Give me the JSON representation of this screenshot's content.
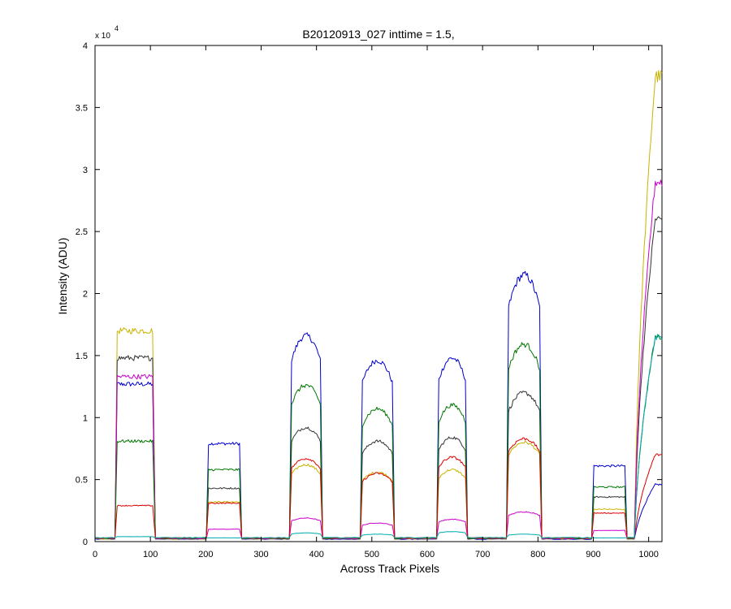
{
  "chart_data": {
    "type": "line",
    "title": "B20120913_027 inttime = 1.5,",
    "xlabel": "Across Track Pixels",
    "ylabel": "Intensity (ADU)",
    "y_exponent_base": "x 10",
    "y_exponent_power": "4",
    "xlim": [
      0,
      1024
    ],
    "ylim": [
      0,
      40000
    ],
    "xticks": [
      0,
      100,
      200,
      300,
      400,
      500,
      600,
      700,
      800,
      900,
      1000
    ],
    "yticks": [
      0,
      5000,
      10000,
      15000,
      20000,
      25000,
      30000,
      35000,
      40000
    ],
    "ytick_labels": [
      "0",
      "0.5",
      "1",
      "1.5",
      "2",
      "2.5",
      "3",
      "3.5",
      "4"
    ],
    "grid": false,
    "legend": "none",
    "background": 200,
    "segments": [
      {
        "x0": 37,
        "x1": 108
      },
      {
        "x0": 202,
        "x1": 264
      },
      {
        "x0": 352,
        "x1": 410
      },
      {
        "x0": 480,
        "x1": 540
      },
      {
        "x0": 618,
        "x1": 672
      },
      {
        "x0": 744,
        "x1": 806
      },
      {
        "x0": 898,
        "x1": 960
      },
      {
        "x0": 975,
        "x1": 1024,
        "edge": true
      }
    ],
    "series": [
      {
        "color": "#0000cc",
        "values": [
          12700,
          7900,
          16600,
          14600,
          14800,
          21500,
          6100,
          4600
        ],
        "shapes": [
          "flat",
          "flat",
          "dome",
          "dome",
          "dome",
          "dome",
          "flat",
          "rise"
        ]
      },
      {
        "color": "#c8b400",
        "values": [
          17000,
          3200,
          6200,
          5600,
          5800,
          8000,
          2600,
          37500
        ],
        "shapes": [
          "flat",
          "flat",
          "dome",
          "dome",
          "dome",
          "dome",
          "flat",
          "rise"
        ]
      },
      {
        "color": "#333333",
        "values": [
          14800,
          4300,
          9200,
          8100,
          8400,
          12000,
          3600,
          26000
        ],
        "shapes": [
          "flat",
          "flat",
          "dome",
          "dome",
          "dome",
          "dome",
          "flat",
          "rise"
        ]
      },
      {
        "color": "#cc00cc",
        "values": [
          13300,
          1000,
          1900,
          1500,
          1800,
          2400,
          900,
          29000
        ],
        "shapes": [
          "flat",
          "flat",
          "dome",
          "dome",
          "dome",
          "dome",
          "flat",
          "rise"
        ]
      },
      {
        "color": "#007700",
        "values": [
          8100,
          5800,
          12600,
          10700,
          11000,
          15900,
          4400,
          16500
        ],
        "shapes": [
          "flat",
          "flat",
          "dome",
          "dome",
          "dome",
          "dome",
          "flat",
          "rise"
        ]
      },
      {
        "color": "#dd0000",
        "values": [
          2900,
          3100,
          6700,
          5500,
          6800,
          8300,
          2300,
          7000
        ],
        "shapes": [
          "flat",
          "flat",
          "dome",
          "dome",
          "dome",
          "dome",
          "flat",
          "rise"
        ]
      },
      {
        "color": "#00aaaa",
        "values": [
          400,
          300,
          700,
          600,
          800,
          600,
          300,
          16500
        ],
        "shapes": [
          "flat",
          "flat",
          "dome",
          "dome",
          "dome",
          "dome",
          "flat",
          "rise"
        ]
      }
    ]
  }
}
